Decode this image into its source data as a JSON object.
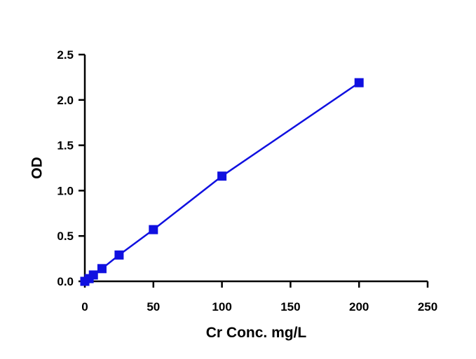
{
  "chart_data": {
    "type": "line",
    "title": "",
    "xlabel": "Cr Conc. mg/L",
    "ylabel": "OD",
    "xlim": [
      0,
      250
    ],
    "ylim": [
      0,
      2.5
    ],
    "x_ticks": [
      "0",
      "50",
      "100",
      "150",
      "200",
      "250"
    ],
    "y_ticks": [
      "0.0",
      "0.5",
      "1.0",
      "1.5",
      "2.0",
      "2.5"
    ],
    "grid": false,
    "marker": "square",
    "series_color": "#1010e0",
    "series": [
      {
        "x": [
          0,
          3.125,
          6.25,
          12.5,
          25,
          50,
          100,
          200
        ],
        "y": [
          0.0,
          0.03,
          0.07,
          0.14,
          0.29,
          0.57,
          1.16,
          2.19
        ]
      }
    ]
  }
}
